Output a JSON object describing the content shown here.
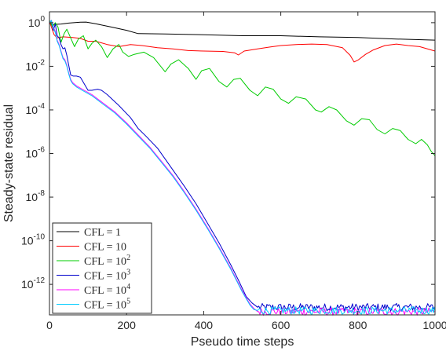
{
  "chart_data": {
    "type": "line",
    "xlabel": "Pseudo time steps",
    "ylabel": "Steady-state residual",
    "xlim": [
      0,
      1000
    ],
    "ylim_log10": [
      -13.4,
      0.5
    ],
    "yscale": "log",
    "x_ticks": [
      {
        "value": 0,
        "label": "0"
      },
      {
        "value": 200,
        "label": "200"
      },
      {
        "value": 400,
        "label": "400"
      },
      {
        "value": 600,
        "label": "600"
      },
      {
        "value": 800,
        "label": "800"
      },
      {
        "value": 1000,
        "label": "1000"
      }
    ],
    "y_ticks": [
      {
        "exp": 0,
        "base": "10",
        "power": "0"
      },
      {
        "exp": -2,
        "base": "10",
        "power": "-2"
      },
      {
        "exp": -4,
        "base": "10",
        "power": "-4"
      },
      {
        "exp": -6,
        "base": "10",
        "power": "-6"
      },
      {
        "exp": -8,
        "base": "10",
        "power": "-8"
      },
      {
        "exp": -10,
        "base": "10",
        "power": "-10"
      },
      {
        "exp": -12,
        "base": "10",
        "power": "-12"
      }
    ],
    "grid": false,
    "legend_position": "bottom-left",
    "series": [
      {
        "name": "CFL = 1",
        "legend_base": "CFL = 1",
        "legend_power": "",
        "color": "#000000",
        "points_log10": [
          [
            0,
            -0.05
          ],
          [
            10,
            -0.08
          ],
          [
            30,
            -0.06
          ],
          [
            50,
            -0.02
          ],
          [
            80,
            0.02
          ],
          [
            95,
            0.03
          ],
          [
            120,
            -0.05
          ],
          [
            160,
            -0.2
          ],
          [
            200,
            -0.35
          ],
          [
            230,
            -0.5
          ],
          [
            300,
            -0.52
          ],
          [
            400,
            -0.55
          ],
          [
            500,
            -0.6
          ],
          [
            600,
            -0.6
          ],
          [
            700,
            -0.65
          ],
          [
            800,
            -0.68
          ],
          [
            900,
            -0.75
          ],
          [
            1000,
            -0.8
          ]
        ]
      },
      {
        "name": "CFL = 10",
        "legend_base": "CFL = 10",
        "legend_power": "",
        "color": "#ff0000",
        "points_log10": [
          [
            0,
            0.05
          ],
          [
            5,
            -0.2
          ],
          [
            12,
            -0.55
          ],
          [
            20,
            -0.7
          ],
          [
            35,
            -0.65
          ],
          [
            60,
            -0.68
          ],
          [
            80,
            -0.72
          ],
          [
            100,
            -0.85
          ],
          [
            120,
            -0.85
          ],
          [
            150,
            -1.0
          ],
          [
            180,
            -1.1
          ],
          [
            210,
            -1.0
          ],
          [
            240,
            -1.05
          ],
          [
            280,
            -1.15
          ],
          [
            320,
            -1.2
          ],
          [
            360,
            -1.28
          ],
          [
            400,
            -1.3
          ],
          [
            450,
            -1.32
          ],
          [
            480,
            -1.38
          ],
          [
            490,
            -1.48
          ],
          [
            505,
            -1.3
          ],
          [
            540,
            -1.2
          ],
          [
            570,
            -1.12
          ],
          [
            600,
            -1.05
          ],
          [
            640,
            -1.0
          ],
          [
            680,
            -0.98
          ],
          [
            720,
            -1.0
          ],
          [
            760,
            -1.15
          ],
          [
            780,
            -1.5
          ],
          [
            790,
            -1.8
          ],
          [
            800,
            -1.72
          ],
          [
            820,
            -1.45
          ],
          [
            840,
            -1.25
          ],
          [
            870,
            -1.05
          ],
          [
            900,
            -0.98
          ],
          [
            930,
            -1.05
          ],
          [
            960,
            -1.1
          ],
          [
            990,
            -1.25
          ],
          [
            1000,
            -1.3
          ]
        ]
      },
      {
        "name": "CFL = 10^2",
        "legend_base": "CFL = 10",
        "legend_power": "2",
        "color": "#00cc00",
        "points_log10": [
          [
            0,
            0.1
          ],
          [
            8,
            -0.2
          ],
          [
            15,
            0.0
          ],
          [
            22,
            -0.2
          ],
          [
            30,
            -0.9
          ],
          [
            38,
            -0.5
          ],
          [
            45,
            -0.3
          ],
          [
            55,
            -0.7
          ],
          [
            65,
            -1.1
          ],
          [
            75,
            -0.75
          ],
          [
            88,
            -0.6
          ],
          [
            100,
            -1.2
          ],
          [
            110,
            -0.95
          ],
          [
            120,
            -0.8
          ],
          [
            135,
            -1.1
          ],
          [
            150,
            -1.6
          ],
          [
            165,
            -1.2
          ],
          [
            180,
            -1.0
          ],
          [
            190,
            -1.35
          ],
          [
            205,
            -1.55
          ],
          [
            220,
            -1.45
          ],
          [
            245,
            -1.35
          ],
          [
            270,
            -1.6
          ],
          [
            300,
            -2.25
          ],
          [
            315,
            -1.9
          ],
          [
            335,
            -1.7
          ],
          [
            360,
            -2.1
          ],
          [
            380,
            -2.6
          ],
          [
            395,
            -2.2
          ],
          [
            415,
            -2.1
          ],
          [
            440,
            -2.7
          ],
          [
            460,
            -2.95
          ],
          [
            478,
            -2.6
          ],
          [
            495,
            -2.55
          ],
          [
            520,
            -3.1
          ],
          [
            540,
            -3.35
          ],
          [
            560,
            -2.95
          ],
          [
            580,
            -3.05
          ],
          [
            600,
            -3.5
          ],
          [
            620,
            -3.7
          ],
          [
            640,
            -3.4
          ],
          [
            665,
            -3.5
          ],
          [
            690,
            -4.0
          ],
          [
            705,
            -4.1
          ],
          [
            725,
            -3.85
          ],
          [
            745,
            -4.0
          ],
          [
            770,
            -4.5
          ],
          [
            790,
            -4.7
          ],
          [
            810,
            -4.4
          ],
          [
            830,
            -4.45
          ],
          [
            850,
            -4.9
          ],
          [
            870,
            -5.1
          ],
          [
            890,
            -4.85
          ],
          [
            910,
            -4.95
          ],
          [
            930,
            -5.35
          ],
          [
            950,
            -5.55
          ],
          [
            965,
            -5.35
          ],
          [
            980,
            -5.6
          ],
          [
            990,
            -5.9
          ],
          [
            1000,
            -6.1
          ]
        ]
      },
      {
        "name": "CFL = 10^3",
        "legend_base": "CFL = 10",
        "legend_power": "3",
        "color": "#0000cc",
        "points_log10": [
          [
            0,
            0.0
          ],
          [
            5,
            0.1
          ],
          [
            10,
            -0.35
          ],
          [
            15,
            -0.05
          ],
          [
            20,
            -0.6
          ],
          [
            25,
            -0.7
          ],
          [
            30,
            -1.0
          ],
          [
            35,
            -1.2
          ],
          [
            40,
            -1.15
          ],
          [
            45,
            -1.5
          ],
          [
            50,
            -1.95
          ],
          [
            55,
            -2.4
          ],
          [
            62,
            -2.45
          ],
          [
            70,
            -2.45
          ],
          [
            80,
            -2.5
          ],
          [
            90,
            -2.8
          ],
          [
            100,
            -3.1
          ],
          [
            110,
            -3.1
          ],
          [
            125,
            -3.05
          ],
          [
            135,
            -3.1
          ],
          [
            150,
            -3.3
          ],
          [
            180,
            -3.8
          ],
          [
            210,
            -4.35
          ],
          [
            230,
            -4.85
          ],
          [
            250,
            -5.2
          ],
          [
            280,
            -5.75
          ],
          [
            300,
            -6.25
          ],
          [
            330,
            -7.0
          ],
          [
            350,
            -7.5
          ],
          [
            380,
            -8.3
          ],
          [
            410,
            -9.2
          ],
          [
            440,
            -10.1
          ],
          [
            470,
            -11.1
          ],
          [
            490,
            -11.8
          ],
          [
            510,
            -12.55
          ],
          [
            525,
            -12.85
          ],
          [
            540,
            -13.05
          ],
          [
            1000,
            -13.05
          ]
        ]
      },
      {
        "name": "CFL = 10^4",
        "legend_base": "CFL = 10",
        "legend_power": "4",
        "color": "#ff00ff",
        "points_log10": [
          [
            0,
            0.0
          ],
          [
            5,
            0.1
          ],
          [
            10,
            -0.2
          ],
          [
            15,
            -0.4
          ],
          [
            20,
            -0.8
          ],
          [
            25,
            -1.0
          ],
          [
            30,
            -1.3
          ],
          [
            35,
            -1.6
          ],
          [
            40,
            -1.7
          ],
          [
            45,
            -1.95
          ],
          [
            50,
            -2.3
          ],
          [
            55,
            -2.6
          ],
          [
            60,
            -2.75
          ],
          [
            70,
            -2.9
          ],
          [
            90,
            -3.1
          ],
          [
            110,
            -3.3
          ],
          [
            140,
            -3.7
          ],
          [
            170,
            -4.1
          ],
          [
            200,
            -4.6
          ],
          [
            230,
            -5.15
          ],
          [
            260,
            -5.7
          ],
          [
            290,
            -6.35
          ],
          [
            320,
            -7.0
          ],
          [
            350,
            -7.75
          ],
          [
            380,
            -8.55
          ],
          [
            410,
            -9.4
          ],
          [
            440,
            -10.3
          ],
          [
            470,
            -11.25
          ],
          [
            500,
            -12.3
          ],
          [
            520,
            -12.9
          ],
          [
            530,
            -13.1
          ],
          [
            540,
            -13.25
          ],
          [
            1000,
            -13.25
          ]
        ]
      },
      {
        "name": "CFL = 10^5",
        "legend_base": "CFL = 10",
        "legend_power": "5",
        "color": "#00ccff",
        "points_log10": [
          [
            0,
            0.0
          ],
          [
            5,
            0.1
          ],
          [
            10,
            -0.25
          ],
          [
            15,
            -0.45
          ],
          [
            20,
            -0.85
          ],
          [
            25,
            -1.05
          ],
          [
            30,
            -1.35
          ],
          [
            35,
            -1.65
          ],
          [
            40,
            -1.75
          ],
          [
            45,
            -2.0
          ],
          [
            50,
            -2.35
          ],
          [
            55,
            -2.65
          ],
          [
            60,
            -2.8
          ],
          [
            70,
            -2.95
          ],
          [
            90,
            -3.15
          ],
          [
            110,
            -3.35
          ],
          [
            140,
            -3.75
          ],
          [
            170,
            -4.15
          ],
          [
            200,
            -4.65
          ],
          [
            230,
            -5.2
          ],
          [
            260,
            -5.75
          ],
          [
            290,
            -6.4
          ],
          [
            320,
            -7.05
          ],
          [
            350,
            -7.8
          ],
          [
            380,
            -8.6
          ],
          [
            410,
            -9.45
          ],
          [
            440,
            -10.35
          ],
          [
            470,
            -11.3
          ],
          [
            500,
            -12.35
          ],
          [
            520,
            -12.95
          ],
          [
            530,
            -13.15
          ],
          [
            540,
            -13.2
          ],
          [
            1000,
            -13.2
          ]
        ]
      }
    ]
  }
}
